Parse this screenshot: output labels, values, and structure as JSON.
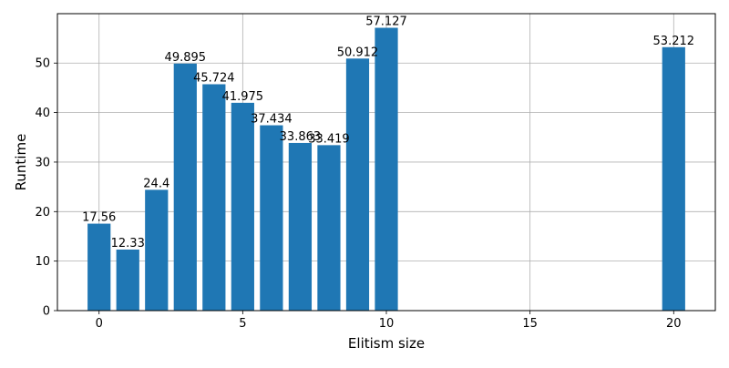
{
  "chart_data": {
    "type": "bar",
    "title": "",
    "xlabel": "Elitism size",
    "ylabel": "Runtime",
    "x": [
      0,
      1,
      2,
      3,
      4,
      5,
      6,
      7,
      8,
      9,
      10,
      20
    ],
    "values": [
      17.56,
      12.33,
      24.4,
      49.895,
      45.724,
      41.975,
      37.434,
      33.863,
      33.419,
      50.912,
      57.127,
      53.212
    ],
    "data_labels": [
      "17.56",
      "12.33",
      "24.4",
      "49.895",
      "45.724",
      "41.975",
      "37.434",
      "33.863",
      "33.419",
      "50.912",
      "57.127",
      "53.212"
    ],
    "xlim": [
      -1.45,
      21.45
    ],
    "ylim": [
      0,
      59.98
    ],
    "xticks": [
      0,
      5,
      10,
      15,
      20
    ],
    "yticks": [
      0,
      10,
      20,
      30,
      40,
      50
    ],
    "grid": true,
    "bar_color": "#1f77b4",
    "grid_color": "#b0b0b0"
  }
}
